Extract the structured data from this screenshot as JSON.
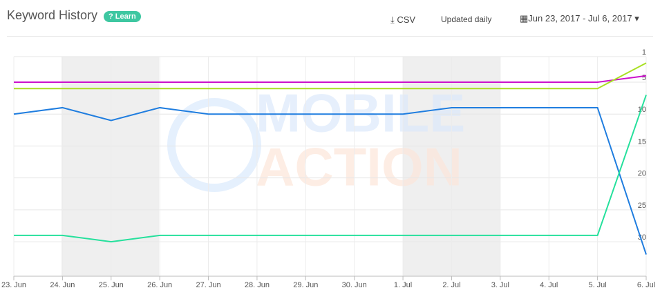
{
  "header": {
    "title": "Keyword History",
    "learn": "Learn",
    "csv": "CSV",
    "updated": "Updated daily",
    "date_range": "Jun 23, 2017 - Jul 6, 2017"
  },
  "watermark": [
    "MOBILE",
    "ACTION"
  ],
  "chart_data": {
    "type": "line",
    "categories": [
      "23. Jun",
      "24. Jun",
      "25. Jun",
      "26. Jun",
      "27. Jun",
      "28. Jun",
      "29. Jun",
      "30. Jun",
      "1. Jul",
      "2. Jul",
      "3. Jul",
      "4. Jul",
      "5. Jul",
      "6. Jul"
    ],
    "series": [
      {
        "color": "#cc11cc",
        "values": [
          5,
          5,
          5,
          5,
          5,
          5,
          5,
          5,
          5,
          5,
          5,
          5,
          5,
          4
        ]
      },
      {
        "color": "#a8e022",
        "values": [
          6,
          6,
          6,
          6,
          6,
          6,
          6,
          6,
          6,
          6,
          6,
          6,
          6,
          2
        ]
      },
      {
        "color": "#1f7ddf",
        "values": [
          10,
          9,
          11,
          9,
          10,
          10,
          10,
          10,
          10,
          9,
          9,
          9,
          9,
          32
        ]
      },
      {
        "color": "#25e09c",
        "values": [
          29,
          29,
          30,
          29,
          29,
          29,
          29,
          29,
          29,
          29,
          29,
          29,
          29,
          7
        ]
      }
    ],
    "ylim": [
      1,
      35.4
    ],
    "reversed": true,
    "yticks": [
      1,
      5,
      10,
      15,
      20,
      25,
      30
    ],
    "grid": true
  }
}
